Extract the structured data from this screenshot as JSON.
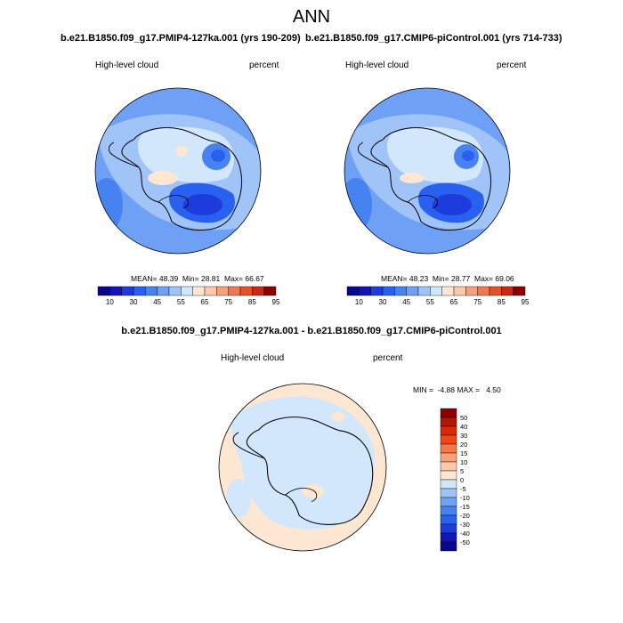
{
  "title": "ANN",
  "panels": [
    {
      "case": "b.e21.B1850.f09_g17.PMIP4-127ka.001 (yrs 190-209)",
      "variable": "High-level cloud",
      "units": "percent",
      "stats": {
        "mean_label": "MEAN=",
        "mean": "48.39",
        "min_label": "Min=",
        "min": "28.81",
        "max_label": "Max=",
        "max": "66.67"
      },
      "colorbar_labels": [
        "10",
        "30",
        "45",
        "55",
        "65",
        "75",
        "85",
        "95"
      ]
    },
    {
      "case": "b.e21.B1850.f09_g17.CMIP6-piControl.001 (yrs 714-733)",
      "variable": "High-level cloud",
      "units": "percent",
      "stats": {
        "mean_label": "MEAN=",
        "mean": "48.23",
        "min_label": "Min=",
        "min": "28.77",
        "max_label": "Max=",
        "max": "69.06"
      },
      "colorbar_labels": [
        "10",
        "30",
        "45",
        "55",
        "65",
        "75",
        "85",
        "95"
      ]
    }
  ],
  "difference": {
    "title": "b.e21.B1850.f09_g17.PMIP4-127ka.001 - b.e21.B1850.f09_g17.CMIP6-piControl.001",
    "variable": "High-level cloud",
    "units": "percent",
    "minmax": "MIN =  -4.88 MAX =   4.50",
    "colorbar_labels": [
      "50",
      "40",
      "30",
      "20",
      "15",
      "10",
      "5",
      "0",
      "-5",
      "-10",
      "-15",
      "-20",
      "-30",
      "-40",
      "-50"
    ]
  },
  "colors": {
    "abs_scale": [
      "#08088c",
      "#1414b4",
      "#1e3cdc",
      "#2860f0",
      "#4682f0",
      "#6ea0f5",
      "#a0c3f8",
      "#d2e6fc",
      "#fde6d2",
      "#fac8aa",
      "#f5a078",
      "#f07850",
      "#e65028",
      "#c82814",
      "#8c0000"
    ],
    "diff_scale": [
      "#8c0000",
      "#b41400",
      "#dc2800",
      "#f04614",
      "#f57846",
      "#faa078",
      "#fac8aa",
      "#fde6d2",
      "#d2e6fc",
      "#a0c3f8",
      "#6ea0f5",
      "#4682f0",
      "#2860f0",
      "#1e3cdc",
      "#1414b4",
      "#08088c"
    ]
  }
}
